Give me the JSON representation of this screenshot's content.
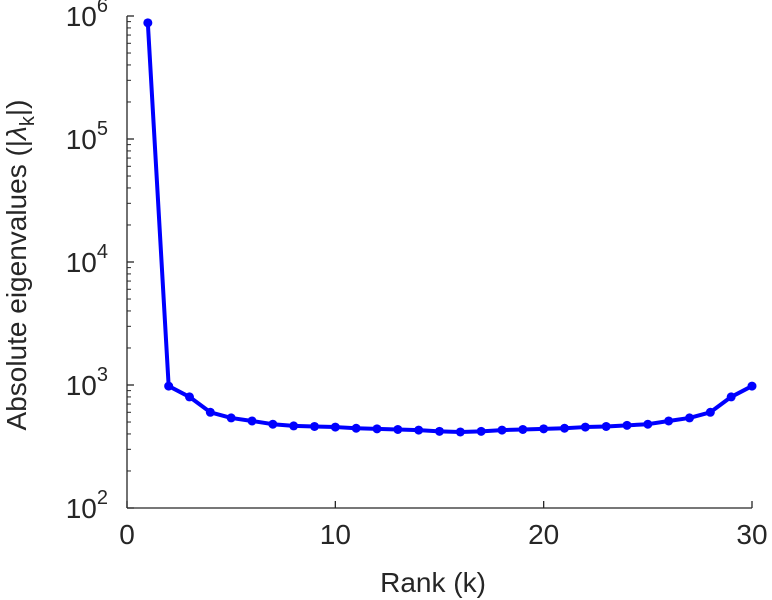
{
  "chart_data": {
    "type": "line",
    "xlabel": "Rank (k)",
    "ylabel": {
      "prefix": "Absolute eigenvalues (|",
      "symbol": "λ",
      "subscript": "k",
      "suffix": "|)"
    },
    "y_scale": "log",
    "xlim": [
      0,
      30
    ],
    "ylim": [
      100,
      1000000
    ],
    "x_ticks": [
      {
        "value": 0,
        "label": "0"
      },
      {
        "value": 10,
        "label": "10"
      },
      {
        "value": 20,
        "label": "20"
      },
      {
        "value": 30,
        "label": "30"
      }
    ],
    "y_ticks": [
      {
        "value": 100,
        "base": "10",
        "exp": "2"
      },
      {
        "value": 1000,
        "base": "10",
        "exp": "3"
      },
      {
        "value": 10000,
        "base": "10",
        "exp": "4"
      },
      {
        "value": 100000,
        "base": "10",
        "exp": "5"
      },
      {
        "value": 1000000,
        "base": "10",
        "exp": "6"
      }
    ],
    "grid": false,
    "series": [
      {
        "color": "#0000ff",
        "marker": "circle",
        "x": [
          1,
          2,
          3,
          4,
          5,
          6,
          7,
          8,
          9,
          10,
          11,
          12,
          13,
          14,
          15,
          16,
          17,
          18,
          19,
          20,
          21,
          22,
          23,
          24,
          25,
          26,
          27,
          28,
          29,
          30
        ],
        "y": [
          880000,
          980,
          800,
          600,
          540,
          510,
          480,
          465,
          460,
          455,
          445,
          440,
          435,
          430,
          420,
          415,
          420,
          430,
          435,
          440,
          445,
          455,
          460,
          470,
          480,
          510,
          540,
          600,
          800,
          980
        ]
      }
    ]
  }
}
